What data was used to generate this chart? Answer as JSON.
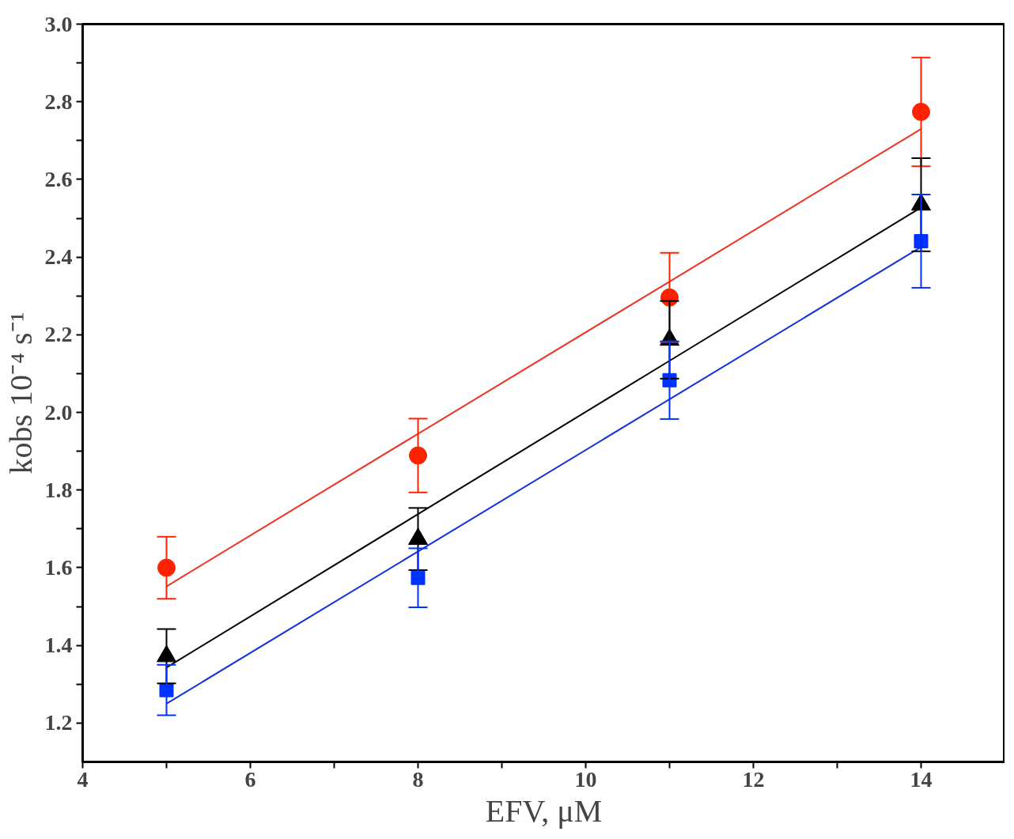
{
  "chart_data": {
    "type": "scatter",
    "xlabel": "EFV, μM",
    "ylabel": "kobs 10⁻⁴ s⁻¹",
    "x": [
      5,
      8,
      11,
      14
    ],
    "xlim": [
      4,
      15
    ],
    "ylim": [
      1.1,
      3.0
    ],
    "xticks": [
      4,
      {
        "value": 5,
        "label": null
      },
      6,
      {
        "value": 7,
        "label": null
      },
      8,
      {
        "value": 9,
        "label": null
      },
      10,
      {
        "value": 11,
        "label": null
      },
      12,
      {
        "value": 13,
        "label": null
      },
      14
    ],
    "yticks": [
      {
        "value": 1.2,
        "label": "1.2"
      },
      {
        "value": 1.3,
        "label": null
      },
      {
        "value": 1.4,
        "label": "1.4"
      },
      {
        "value": 1.5,
        "label": null
      },
      {
        "value": 1.6,
        "label": "1.6"
      },
      {
        "value": 1.7,
        "label": null
      },
      {
        "value": 1.8,
        "label": "1.8"
      },
      {
        "value": 1.9,
        "label": null
      },
      {
        "value": 2.0,
        "label": "2.0"
      },
      {
        "value": 2.1,
        "label": null
      },
      {
        "value": 2.2,
        "label": "2.2"
      },
      {
        "value": 2.3,
        "label": null
      },
      {
        "value": 2.4,
        "label": "2.4"
      },
      {
        "value": 2.5,
        "label": null
      },
      {
        "value": 2.6,
        "label": "2.6"
      },
      {
        "value": 2.7,
        "label": null
      },
      {
        "value": 2.8,
        "label": "2.8"
      },
      {
        "value": 2.9,
        "label": null
      },
      {
        "value": 3.0,
        "label": "3.0"
      }
    ],
    "grid": false,
    "series": [
      {
        "type": "line",
        "color": "#ee3322",
        "values": [
          1.552,
          1.945,
          2.337,
          2.73
        ],
        "marker": "none"
      },
      {
        "type": "line",
        "color": "#000000",
        "values": [
          1.343,
          1.738,
          2.133,
          2.528
        ],
        "marker": "none"
      },
      {
        "type": "line",
        "color": "#1133dd",
        "values": [
          1.25,
          1.642,
          2.034,
          2.426
        ],
        "marker": "none"
      },
      {
        "color": "#ff2200",
        "marker": "circle",
        "values": [
          1.6,
          1.889,
          2.296,
          2.774
        ],
        "errors": [
          0.08,
          0.095,
          0.115,
          0.14
        ]
      },
      {
        "color": "#000000",
        "marker": "triangle",
        "values": [
          1.372,
          1.674,
          2.187,
          2.535
        ],
        "errors": [
          0.07,
          0.08,
          0.1,
          0.12
        ]
      },
      {
        "color": "#0033ff",
        "marker": "square",
        "values": [
          1.285,
          1.574,
          2.083,
          2.441
        ],
        "errors": [
          0.065,
          0.076,
          0.1,
          0.12
        ]
      }
    ]
  }
}
